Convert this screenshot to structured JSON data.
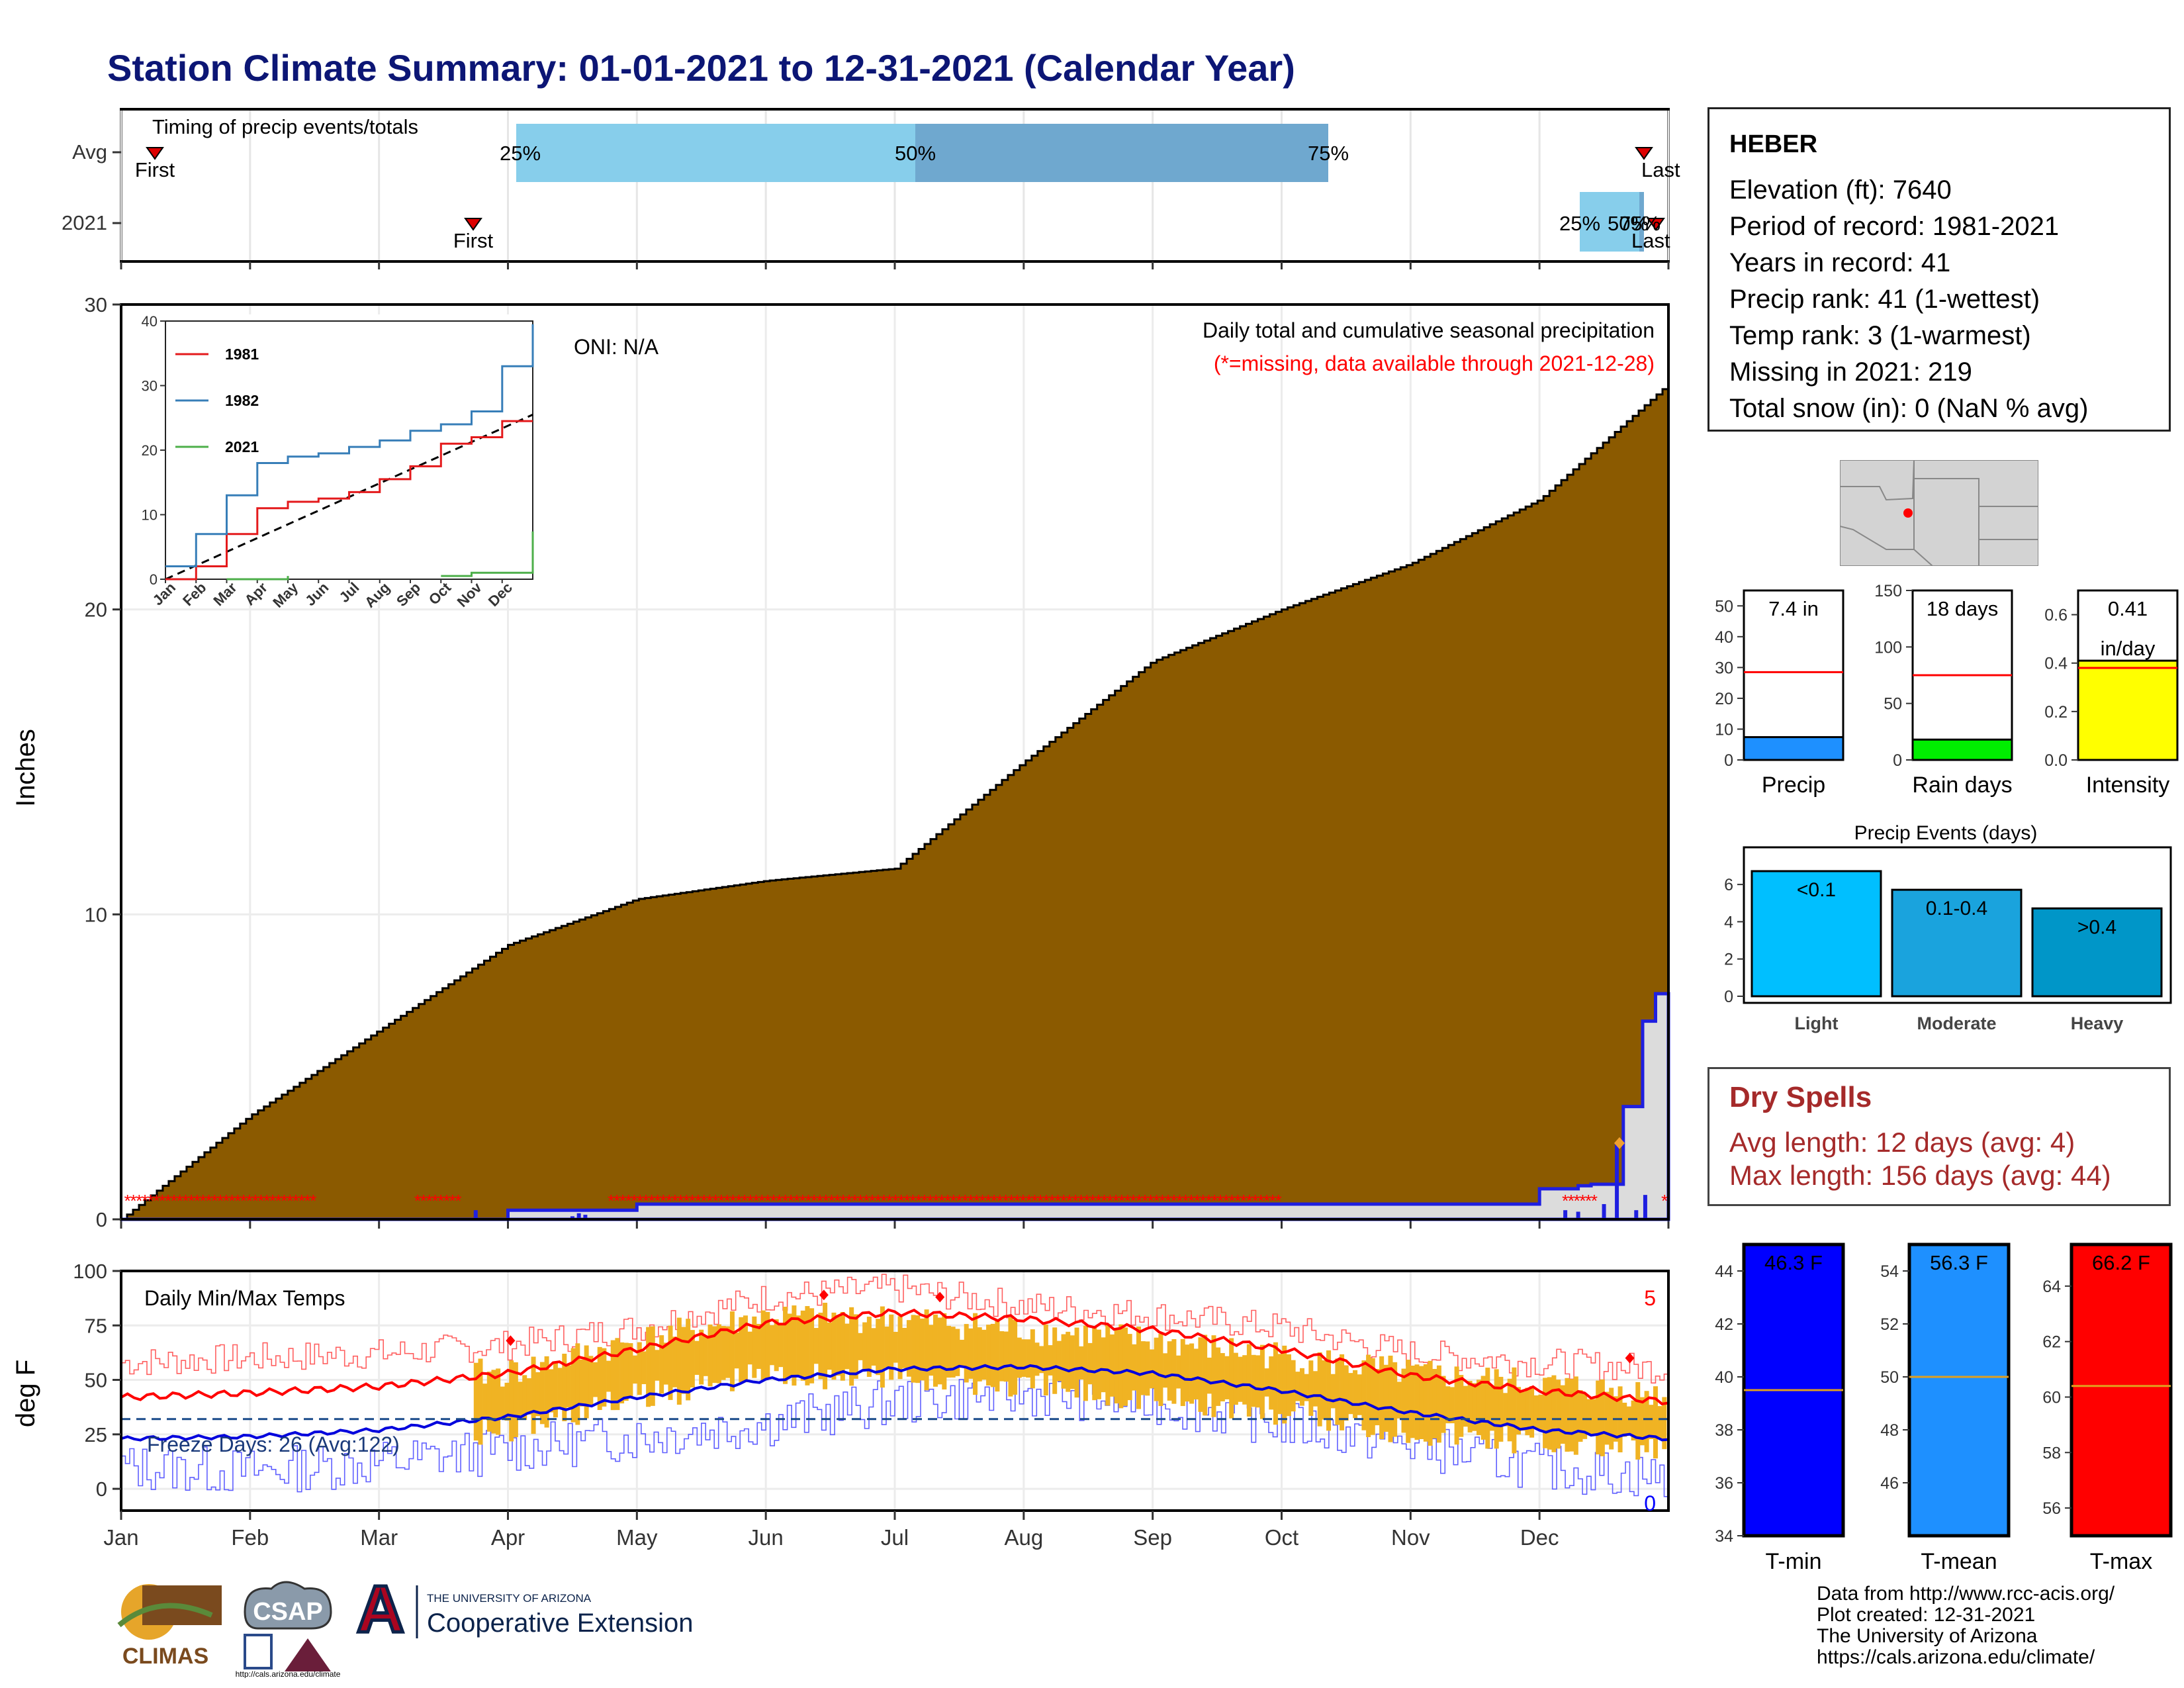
{
  "title": "Station Climate Summary: 01-01-2021 to 12-31-2021 (Calendar Year)",
  "colors": {
    "title": "#0c1675",
    "precip": "#8b5a00",
    "obs": "#1f1fe0",
    "missing": "#ff0000",
    "tempbar": "#f0b323",
    "tmax_avg": "#ff0000",
    "tmin_avg": "#0000dd"
  },
  "timing": {
    "label": "Timing of precip events/totals",
    "rows": [
      {
        "name": "Avg",
        "first_label": "First",
        "last_label": "Last",
        "q25": "25%",
        "q50": "50%",
        "q75": "75%"
      },
      {
        "name": "2021",
        "first_label": "First",
        "last_label": "Last",
        "q25": "25%",
        "q50": "50%",
        "q75": "75%"
      }
    ]
  },
  "precip_panel": {
    "ylabel": "Inches",
    "yticks": [
      "0",
      "10",
      "20",
      "30"
    ],
    "subtitle": "Daily total and cumulative seasonal precipitation",
    "missing_note": "(*=missing, data available through 2021-12-28)",
    "oni": "ONI: N/A"
  },
  "inset": {
    "yticks": [
      "0",
      "10",
      "20",
      "30",
      "40"
    ],
    "months": [
      "Jan",
      "Feb",
      "Mar",
      "Apr",
      "May",
      "Jun",
      "Jul",
      "Aug",
      "Sep",
      "Oct",
      "Nov",
      "Dec"
    ],
    "legend": [
      "1981",
      "1982",
      "2021"
    ],
    "legend_colors": [
      "#e41a1c",
      "#377eb8",
      "#4daf4a"
    ]
  },
  "temp_panel": {
    "ylabel": "deg F",
    "label": "Daily Min/Max Temps",
    "yticks": [
      "0",
      "25",
      "50",
      "75",
      "100"
    ],
    "freeze": "Freeze Days: 26 (Avg:122)",
    "count_top": "5",
    "count_bottom": "0"
  },
  "months": [
    "Jan",
    "Feb",
    "Mar",
    "Apr",
    "May",
    "Jun",
    "Jul",
    "Aug",
    "Sep",
    "Oct",
    "Nov",
    "Dec"
  ],
  "station": {
    "name": "HEBER",
    "lines": [
      "Elevation (ft): 7640",
      "Period of record: 1981-2021",
      "Years in record: 41",
      "Precip rank: 41 (1-wettest)",
      "Temp rank: 3 (1-warmest)",
      "Missing in 2021: 219",
      "Total snow (in): 0 (NaN % avg)"
    ]
  },
  "gauges": [
    {
      "name": "Precip",
      "value_label": "7.4 in",
      "value": 7.4,
      "avg": 28.5,
      "max": 55,
      "ticks": [
        "0",
        "10",
        "20",
        "30",
        "40",
        "50"
      ],
      "color": "#1e90ff"
    },
    {
      "name": "Rain days",
      "value_label": "18 days",
      "value": 18,
      "avg": 75,
      "max": 150,
      "ticks": [
        "0",
        "50",
        "100",
        "150"
      ],
      "color": "#00ee00"
    },
    {
      "name": "Intensity",
      "value_label": "0.41",
      "value_label2": "in/day",
      "value": 0.41,
      "avg": 0.38,
      "max": 0.7,
      "ticks": [
        "0.0",
        "0.2",
        "0.4",
        "0.6"
      ],
      "color": "#ffff00"
    }
  ],
  "precip_events": {
    "title": "Precip Events (days)",
    "ticks": [
      "0",
      "2",
      "4",
      "6"
    ],
    "bars": [
      {
        "name": "Light",
        "range": "<0.1",
        "value": 7,
        "color": "#00bfff"
      },
      {
        "name": "Moderate",
        "range": "0.1-0.4",
        "value": 6,
        "color": "#1aa3dd"
      },
      {
        "name": "Heavy",
        "range": ">0.4",
        "value": 5,
        "color": "#0096c8"
      }
    ]
  },
  "dry_spells": {
    "title": "Dry Spells",
    "avg_line": "Avg length: 12 days (avg: 4)",
    "max_line": "Max length: 156 days (avg: 44)"
  },
  "temp_bars": [
    {
      "name": "T-min",
      "value_label": "46.3 F",
      "value": 46.3,
      "avg": 39.5,
      "min": 34,
      "max": 45,
      "ticks": [
        "34",
        "36",
        "38",
        "40",
        "42",
        "44"
      ],
      "color": "#0000ff"
    },
    {
      "name": "T-mean",
      "value_label": "56.3 F",
      "value": 56.3,
      "avg": 50.0,
      "min": 44,
      "max": 55,
      "ticks": [
        "46",
        "48",
        "50",
        "52",
        "54"
      ],
      "color": "#1e90ff"
    },
    {
      "name": "T-max",
      "value_label": "66.2 F",
      "value": 66.2,
      "avg": 60.4,
      "min": 55,
      "max": 65.5,
      "ticks": [
        "56",
        "58",
        "60",
        "62",
        "64"
      ],
      "color": "#ff0000"
    }
  ],
  "credits": [
    "Data from http://www.rcc-acis.org/",
    "Plot created: 12-31-2021",
    "The University of Arizona",
    "https://cals.arizona.edu/climate/"
  ],
  "logos": {
    "climas": "CLIMAS",
    "csap": "CSAP",
    "csap_url": "http://cals.arizona.edu/climate",
    "ua_line1": "THE UNIVERSITY OF ARIZONA",
    "ua_line2": "Cooperative Extension",
    "ua_letter": "A"
  },
  "chart_data": [
    {
      "type": "area",
      "title": "Daily total and cumulative seasonal precipitation",
      "ylabel": "Inches",
      "ylim": [
        0,
        30
      ],
      "x_unit": "month start",
      "series": [
        {
          "name": "",
          "x": [
            "Jan",
            "Feb",
            "Mar",
            "Apr",
            "May",
            "Jun",
            "Jul",
            "Aug",
            "Sep",
            "Oct",
            "Nov",
            "Dec",
            "Dec 31"
          ],
          "values": [
            0,
            3.4,
            6.2,
            9.0,
            10.5,
            11.1,
            11.5,
            15.0,
            18.3,
            20.0,
            21.5,
            23.6,
            27.4
          ]
        },
        {
          "name": "",
          "x": [
            "Jan",
            "Apr",
            "May",
            "Oct",
            "Dec 10",
            "Dec 20",
            "Dec 24",
            "Dec 28"
          ],
          "values": [
            0,
            0.5,
            1.0,
            1.0,
            1.1,
            3.7,
            6.5,
            7.4
          ]
        }
      ]
    },
    {
      "type": "line",
      "ylim": [
        0,
        40
      ],
      "categories": [
        "Jan",
        "Feb",
        "Mar",
        "Apr",
        "May",
        "Jun",
        "Jul",
        "Aug",
        "Sep",
        "Oct",
        "Nov",
        "Dec",
        "Dec 31"
      ],
      "series": [
        {
          "name": "1981",
          "values": [
            0,
            2,
            7,
            11,
            12,
            12.5,
            13.5,
            15.5,
            17.5,
            21,
            22,
            24.5,
            24.5
          ]
        },
        {
          "name": "1982",
          "values": [
            2,
            7,
            13,
            18,
            19,
            19.5,
            20.5,
            21.5,
            23,
            24,
            26,
            33,
            39.5
          ]
        },
        {
          "name": "2021",
          "values": [
            null,
            null,
            0,
            0,
            0.5,
            null,
            null,
            null,
            null,
            0.5,
            1,
            1,
            7.4
          ]
        }
      ]
    },
    {
      "type": "line",
      "title": "Daily Min/Max Temps",
      "ylabel": "deg F",
      "ylim": [
        -10,
        100
      ],
      "categories": [
        "Jan",
        "Feb",
        "Mar",
        "Apr",
        "May",
        "Jun",
        "Jul",
        "Aug",
        "Sep",
        "Oct",
        "Nov",
        "Dec",
        "Dec 31"
      ],
      "series": [
        {
          "name": "",
          "values": [
            42,
            44,
            47,
            53,
            64,
            76,
            81,
            78,
            73,
            64,
            52,
            45,
            40
          ]
        },
        {
          "name": "",
          "values": [
            23,
            24,
            27,
            33,
            42,
            50,
            55,
            56,
            53,
            45,
            35,
            27,
            23
          ]
        },
        {
          "name": "",
          "values": [
            58,
            60,
            62,
            66,
            74,
            88,
            92,
            84,
            80,
            74,
            62,
            58,
            55
          ]
        },
        {
          "name": "",
          "values": [
            10,
            8,
            12,
            18,
            24,
            30,
            40,
            44,
            40,
            30,
            20,
            10,
            5
          ]
        },
        {
          "name": "",
          "values": [
            null,
            null,
            null,
            40,
            55,
            66,
            65,
            60,
            55,
            48,
            40,
            35,
            30
          ]
        },
        {
          "name": "",
          "values": [
            32,
            32,
            32,
            32,
            32,
            32,
            32,
            32,
            32,
            32,
            32,
            32,
            32
          ]
        }
      ]
    },
    {
      "type": "bar",
      "title": "Precip Events (days)",
      "categories": [
        "Light",
        "Moderate",
        "Heavy"
      ],
      "values": [
        7,
        6,
        5
      ],
      "ylim": [
        0,
        7
      ]
    }
  ]
}
